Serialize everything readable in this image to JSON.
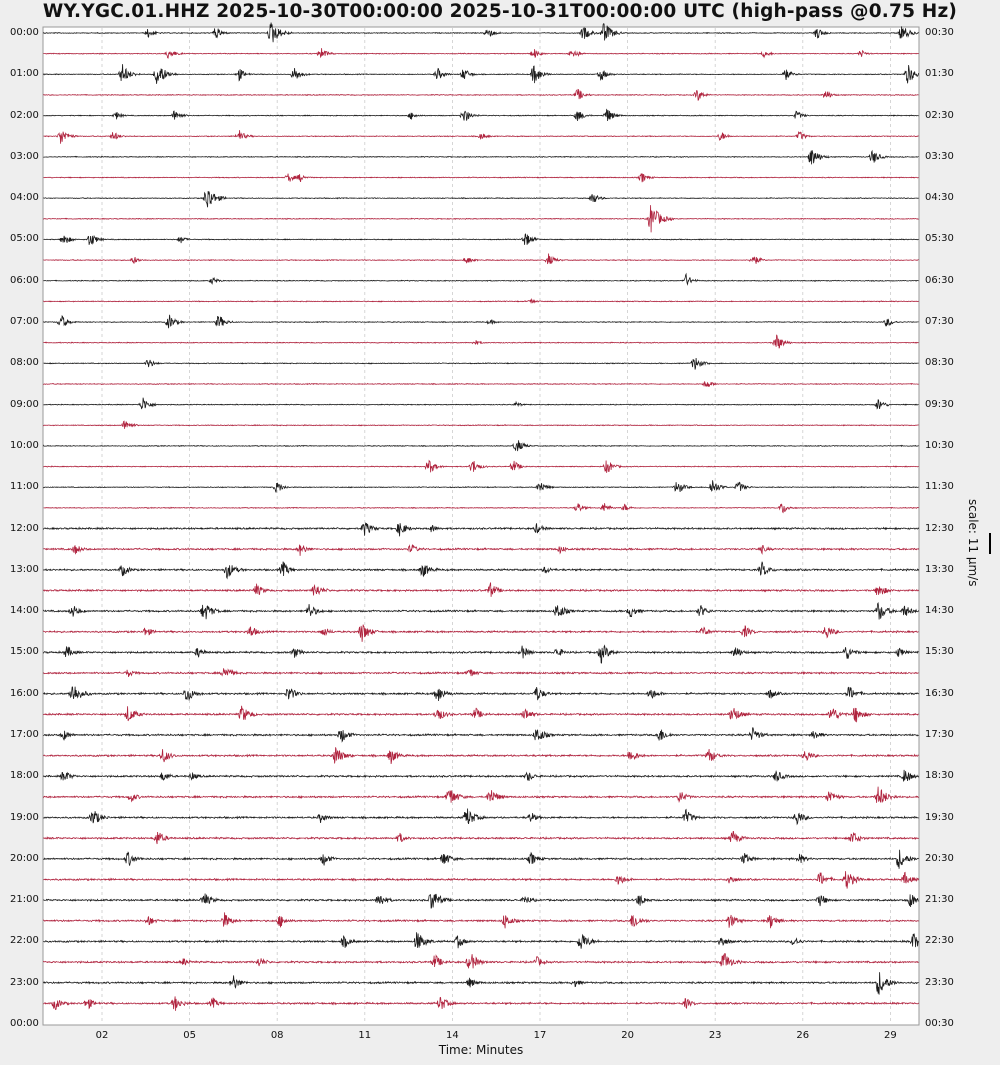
{
  "title": "WY.YGC.01.HHZ 2025-10-30T00:00:00 2025-10-31T00:00:00 UTC (high-pass @0.75 Hz)",
  "chart_data": {
    "type": "line",
    "subtype": "helicorder",
    "title": "WY.YGC.01.HHZ 2025-10-30T00:00:00 2025-10-31T00:00:00 UTC (high-pass @0.75 Hz)",
    "xlabel": "Time: Minutes",
    "xlim": [
      0,
      30
    ],
    "x_ticks": [
      "02",
      "05",
      "08",
      "11",
      "14",
      "17",
      "20",
      "23",
      "26",
      "29"
    ],
    "x_tick_values": [
      2,
      5,
      8,
      11,
      14,
      17,
      20,
      23,
      26,
      29
    ],
    "left_labels": [
      "00:00",
      "01:00",
      "02:00",
      "03:00",
      "04:00",
      "05:00",
      "06:00",
      "07:00",
      "08:00",
      "09:00",
      "10:00",
      "11:00",
      "12:00",
      "13:00",
      "14:00",
      "15:00",
      "16:00",
      "17:00",
      "18:00",
      "19:00",
      "20:00",
      "21:00",
      "22:00",
      "23:00",
      "00:00"
    ],
    "right_labels": [
      "00:30",
      "01:30",
      "02:30",
      "03:30",
      "04:30",
      "05:30",
      "06:30",
      "07:30",
      "08:30",
      "09:30",
      "10:30",
      "11:30",
      "12:30",
      "13:30",
      "14:30",
      "15:30",
      "16:30",
      "17:30",
      "18:30",
      "19:30",
      "20:30",
      "21:30",
      "22:30",
      "23:30",
      "00:30"
    ],
    "scale_label": "scale: 11 μm/s",
    "colors": {
      "hour_trace": "#1c1c1c",
      "half_hour_trace": "#b0243f",
      "grid": "#cccccc"
    },
    "rows_note": "48 half-hour rows; events as [minute, relative amplitude]",
    "events": [
      [
        [
          3.6,
          0.4
        ],
        [
          5.9,
          0.5
        ],
        [
          7.8,
          1.0
        ],
        [
          15.2,
          0.5
        ],
        [
          18.5,
          0.6
        ],
        [
          19.2,
          0.9
        ],
        [
          26.5,
          0.5
        ],
        [
          29.4,
          0.7
        ]
      ],
      [
        [
          4.3,
          0.5
        ],
        [
          9.5,
          0.5
        ],
        [
          16.8,
          0.4
        ],
        [
          18.1,
          0.5
        ],
        [
          24.7,
          0.3
        ],
        [
          28,
          0.3
        ]
      ],
      [
        [
          2.7,
          0.8
        ],
        [
          3.9,
          1.0
        ],
        [
          6.7,
          0.5
        ],
        [
          8.6,
          0.6
        ],
        [
          13.5,
          0.5
        ],
        [
          14.4,
          0.5
        ],
        [
          16.8,
          0.8
        ],
        [
          19.1,
          0.5
        ],
        [
          25.4,
          0.5
        ],
        [
          29.6,
          0.8
        ]
      ],
      [
        [
          18.3,
          0.5
        ],
        [
          22.4,
          0.5
        ],
        [
          26.8,
          0.4
        ]
      ],
      [
        [
          2.5,
          0.3
        ],
        [
          4.5,
          0.5
        ],
        [
          12.6,
          0.3
        ],
        [
          14.4,
          0.6
        ],
        [
          18.3,
          0.5
        ],
        [
          19.3,
          0.6
        ],
        [
          25.8,
          0.4
        ]
      ],
      [
        [
          0.6,
          0.7
        ],
        [
          2.4,
          0.4
        ],
        [
          6.7,
          0.5
        ],
        [
          15,
          0.3
        ],
        [
          23.2,
          0.4
        ],
        [
          25.9,
          0.4
        ]
      ],
      [
        [
          26.3,
          0.8
        ],
        [
          28.4,
          0.6
        ]
      ],
      [
        [
          8.4,
          0.4
        ],
        [
          8.8,
          0.3
        ],
        [
          20.5,
          0.4
        ]
      ],
      [
        [
          5.6,
          1.0
        ],
        [
          18.8,
          0.5
        ]
      ],
      [
        [
          20.8,
          1.2
        ]
      ],
      [
        [
          0.7,
          0.5
        ],
        [
          1.6,
          0.6
        ],
        [
          4.7,
          0.3
        ],
        [
          16.5,
          0.6
        ]
      ],
      [
        [
          3.1,
          0.3
        ],
        [
          14.5,
          0.3
        ],
        [
          17.3,
          0.5
        ],
        [
          24.3,
          0.5
        ]
      ],
      [
        [
          5.8,
          0.3
        ],
        [
          22,
          0.5
        ]
      ],
      [
        [
          16.7,
          0.2
        ]
      ],
      [
        [
          0.6,
          0.6
        ],
        [
          4.3,
          0.6
        ],
        [
          6.0,
          0.6
        ],
        [
          15.3,
          0.2
        ],
        [
          28.9,
          0.4
        ]
      ],
      [
        [
          14.8,
          0.2
        ],
        [
          25.1,
          0.7
        ]
      ],
      [
        [
          3.6,
          0.4
        ],
        [
          22.3,
          0.6
        ]
      ],
      [
        [
          22.7,
          0.4
        ]
      ],
      [
        [
          3.4,
          0.6
        ],
        [
          16.2,
          0.2
        ],
        [
          28.6,
          0.5
        ]
      ],
      [
        [
          2.8,
          0.5
        ]
      ],
      [
        [
          16.2,
          0.6
        ]
      ],
      [
        [
          13.2,
          0.6
        ],
        [
          14.7,
          0.6
        ],
        [
          16.1,
          0.5
        ],
        [
          19.3,
          0.6
        ]
      ],
      [
        [
          8.0,
          0.5
        ],
        [
          17,
          0.5
        ],
        [
          21.7,
          0.6
        ],
        [
          22.9,
          0.7
        ],
        [
          23.8,
          0.5
        ]
      ],
      [
        [
          18.3,
          0.4
        ],
        [
          19.2,
          0.4
        ],
        [
          19.9,
          0.3
        ],
        [
          25.3,
          0.5
        ]
      ],
      [
        [
          11,
          0.6
        ],
        [
          12.2,
          0.6
        ],
        [
          13.3,
          0.3
        ],
        [
          16.9,
          0.4
        ]
      ],
      [
        [
          1.1,
          0.4
        ],
        [
          8.8,
          0.5
        ],
        [
          12.6,
          0.4
        ],
        [
          17.7,
          0.3
        ],
        [
          24.6,
          0.3
        ]
      ],
      [
        [
          2.7,
          0.5
        ],
        [
          6.3,
          0.7
        ],
        [
          8.2,
          0.6
        ],
        [
          13,
          0.6
        ],
        [
          17.2,
          0.3
        ],
        [
          24.6,
          0.6
        ]
      ],
      [
        [
          7.3,
          0.5
        ],
        [
          9.3,
          0.6
        ],
        [
          15.3,
          0.6
        ],
        [
          28.6,
          0.6
        ]
      ],
      [
        [
          1,
          0.5
        ],
        [
          5.5,
          0.8
        ],
        [
          9.1,
          0.6
        ],
        [
          17.6,
          0.7
        ],
        [
          20.1,
          0.5
        ],
        [
          22.5,
          0.5
        ],
        [
          28.6,
          0.8
        ],
        [
          29.5,
          0.5
        ]
      ],
      [
        [
          3.5,
          0.4
        ],
        [
          7.1,
          0.5
        ],
        [
          9.6,
          0.4
        ],
        [
          10.9,
          0.8
        ],
        [
          22.6,
          0.4
        ],
        [
          24,
          0.5
        ],
        [
          26.8,
          0.6
        ]
      ],
      [
        [
          0.8,
          0.5
        ],
        [
          5.3,
          0.4
        ],
        [
          8.6,
          0.4
        ],
        [
          16.4,
          0.5
        ],
        [
          17.6,
          0.4
        ],
        [
          19.1,
          0.8
        ],
        [
          23.7,
          0.5
        ],
        [
          27.5,
          0.6
        ],
        [
          29.3,
          0.4
        ]
      ],
      [
        [
          2.9,
          0.3
        ],
        [
          6.2,
          0.6
        ],
        [
          14.6,
          0.4
        ]
      ],
      [
        [
          1,
          0.9
        ],
        [
          4.9,
          0.7
        ],
        [
          8.4,
          0.6
        ],
        [
          13.5,
          0.7
        ],
        [
          16.9,
          0.6
        ],
        [
          20.8,
          0.5
        ],
        [
          24.9,
          0.4
        ],
        [
          27.6,
          0.6
        ]
      ],
      [
        [
          2.9,
          0.7
        ],
        [
          6.8,
          0.7
        ],
        [
          13.5,
          0.6
        ],
        [
          14.8,
          0.5
        ],
        [
          16.5,
          0.5
        ],
        [
          23.6,
          0.7
        ],
        [
          27,
          0.7
        ],
        [
          27.8,
          0.7
        ]
      ],
      [
        [
          0.7,
          0.4
        ],
        [
          10.2,
          0.6
        ],
        [
          16.9,
          0.7
        ],
        [
          21.1,
          0.6
        ],
        [
          24.3,
          0.6
        ],
        [
          26.4,
          0.4
        ]
      ],
      [
        [
          4.1,
          0.6
        ],
        [
          10,
          0.8
        ],
        [
          11.9,
          0.6
        ],
        [
          20.1,
          0.6
        ],
        [
          22.8,
          0.6
        ],
        [
          26.1,
          0.5
        ]
      ],
      [
        [
          0.7,
          0.5
        ],
        [
          4.1,
          0.4
        ],
        [
          5.1,
          0.3
        ],
        [
          16.6,
          0.4
        ],
        [
          25.1,
          0.5
        ],
        [
          29.5,
          0.6
        ]
      ],
      [
        [
          3,
          0.4
        ],
        [
          13.9,
          0.8
        ],
        [
          15.3,
          0.7
        ],
        [
          21.8,
          0.5
        ],
        [
          26.9,
          0.6
        ],
        [
          28.6,
          0.9
        ]
      ],
      [
        [
          1.7,
          0.7
        ],
        [
          9.5,
          0.4
        ],
        [
          14.5,
          0.8
        ],
        [
          16.7,
          0.4
        ],
        [
          22,
          0.6
        ],
        [
          25.8,
          0.6
        ]
      ],
      [
        [
          3.9,
          0.6
        ],
        [
          12.2,
          0.4
        ],
        [
          23.6,
          0.6
        ],
        [
          27.7,
          0.6
        ]
      ],
      [
        [
          2.9,
          0.6
        ],
        [
          9.6,
          0.5
        ],
        [
          13.7,
          0.6
        ],
        [
          16.7,
          0.5
        ],
        [
          24,
          0.5
        ],
        [
          25.9,
          0.4
        ],
        [
          29.3,
          0.8
        ]
      ],
      [
        [
          19.7,
          0.5
        ],
        [
          23.5,
          0.4
        ],
        [
          26.6,
          0.6
        ],
        [
          27.5,
          0.8
        ],
        [
          29.5,
          0.5
        ]
      ],
      [
        [
          5.5,
          0.6
        ],
        [
          11.5,
          0.6
        ],
        [
          13.3,
          0.9
        ],
        [
          16.5,
          0.4
        ],
        [
          20.4,
          0.5
        ],
        [
          26.6,
          0.5
        ],
        [
          29.7,
          0.6
        ]
      ],
      [
        [
          3.6,
          0.4
        ],
        [
          6.2,
          0.6
        ],
        [
          8.1,
          0.5
        ],
        [
          15.8,
          0.6
        ],
        [
          20.2,
          0.7
        ],
        [
          23.5,
          0.6
        ],
        [
          24.9,
          0.6
        ]
      ],
      [
        [
          10.3,
          0.5
        ],
        [
          12.8,
          0.8
        ],
        [
          14.2,
          0.5
        ],
        [
          18.4,
          0.8
        ],
        [
          23.2,
          0.5
        ],
        [
          25.7,
          0.4
        ],
        [
          29.8,
          0.7
        ]
      ],
      [
        [
          4.8,
          0.3
        ],
        [
          7.4,
          0.4
        ],
        [
          13.4,
          0.6
        ],
        [
          14.6,
          0.8
        ],
        [
          16.9,
          0.4
        ],
        [
          23.3,
          0.8
        ]
      ],
      [
        [
          6.5,
          0.6
        ],
        [
          14.6,
          0.4
        ],
        [
          18.2,
          0.3
        ],
        [
          28.6,
          1.0
        ]
      ],
      [
        [
          0.4,
          0.5
        ],
        [
          1.5,
          0.5
        ],
        [
          4.5,
          0.6
        ],
        [
          5.8,
          0.4
        ],
        [
          13.6,
          0.6
        ],
        [
          22,
          0.4
        ]
      ]
    ]
  }
}
